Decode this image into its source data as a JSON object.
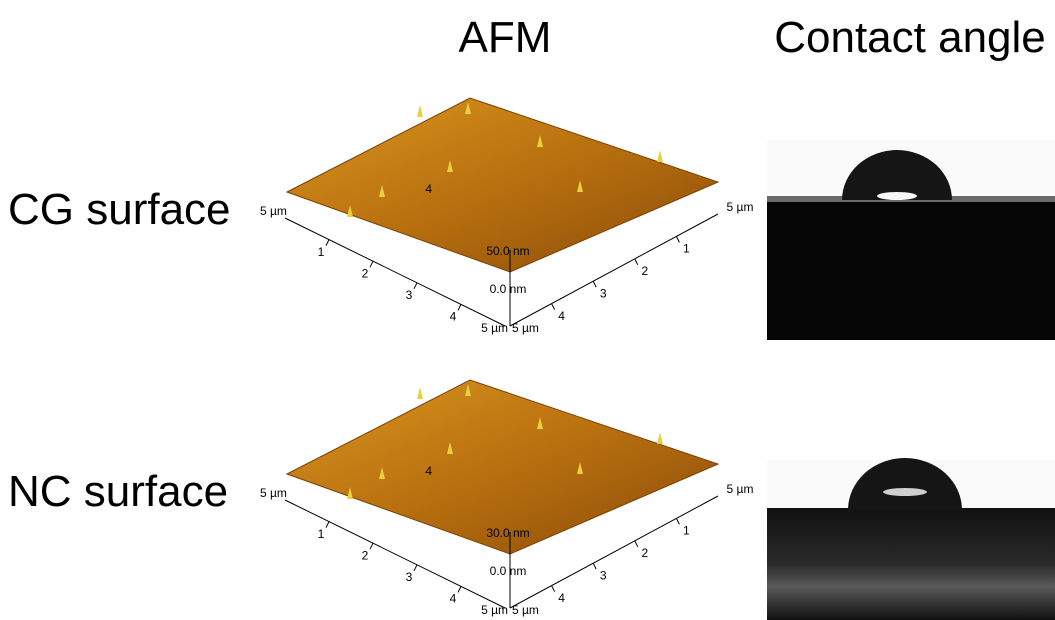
{
  "header": {
    "afm": "AFM",
    "contact_angle": "Contact angle"
  },
  "rows": [
    {
      "label": "CG surface",
      "afm": {
        "left_end": "5 µm",
        "left_ticks": [
          "1",
          "2",
          "3",
          "4"
        ],
        "left_corner": "5 µm",
        "right_end": "5 µm",
        "right_ticks": [
          "1",
          "2",
          "3",
          "4"
        ],
        "right_corner": "5 µm",
        "z_top": "50.0 nm",
        "z_bottom": "0.0 nm",
        "back_tick": "4"
      }
    },
    {
      "label": "NC surface",
      "afm": {
        "left_end": "5 µm",
        "left_ticks": [
          "1",
          "2",
          "3",
          "4"
        ],
        "left_corner": "5 µm",
        "right_end": "5 µm",
        "right_ticks": [
          "1",
          "2",
          "3",
          "4"
        ],
        "right_corner": "5 µm",
        "z_top": "30.0 nm",
        "z_bottom": "0.0 nm",
        "back_tick": "4"
      }
    }
  ]
}
